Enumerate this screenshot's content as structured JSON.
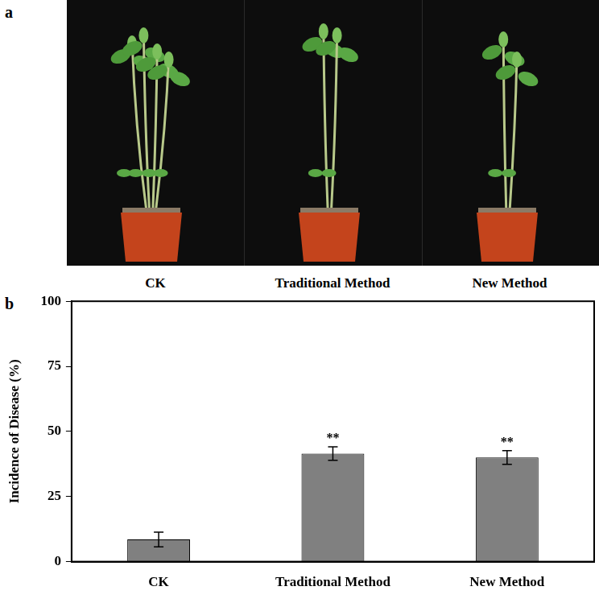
{
  "panel_a": {
    "letter": "a",
    "captions": [
      "CK",
      "Traditional Method",
      "New Method"
    ]
  },
  "chart_data": {
    "letter": "b",
    "type": "bar",
    "categories": [
      "CK",
      "Traditional Method",
      "New Method"
    ],
    "values": [
      8.5,
      41.5,
      40
    ],
    "errors": [
      2.8,
      2.6,
      2.6
    ],
    "annotations": [
      null,
      "**",
      "**"
    ],
    "y_label": "Incidence of Disease (%)",
    "ylim": [
      0,
      100
    ],
    "yticks": [
      0,
      25,
      50,
      75,
      100
    ],
    "color": "#808080",
    "grid": false
  }
}
